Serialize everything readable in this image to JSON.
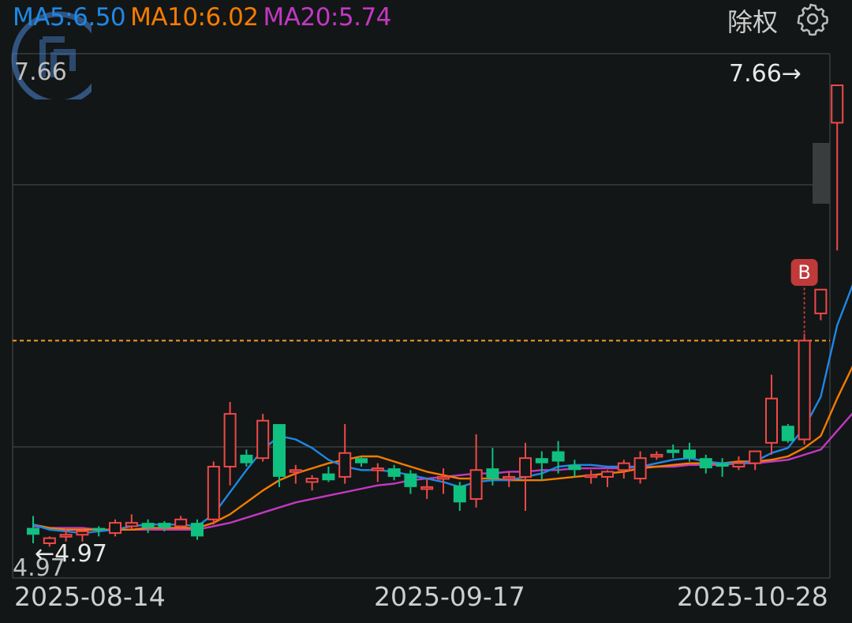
{
  "legend": {
    "ma5": {
      "label": "MA5:6.50",
      "color": "#1e88e5"
    },
    "ma10": {
      "label": "MA10:6.02",
      "color": "#f57c00"
    },
    "ma20": {
      "label": "MA20:5.74",
      "color": "#c238c2"
    }
  },
  "controls": {
    "adjust_label": "除权",
    "settings_icon": "gear-icon"
  },
  "axis": {
    "top_price": "7.66",
    "bottom_price": "4.97",
    "dates": [
      "2025-08-14",
      "2025-09-17",
      "2025-10-28"
    ]
  },
  "annotations": {
    "high_label": "7.66→",
    "low_label": "←4.97",
    "buy_marker": "B"
  },
  "chart_data": {
    "type": "candlestick",
    "ylim": [
      4.97,
      7.66
    ],
    "up_color": "#f04848",
    "down_color": "#10c080",
    "reference_line": 6.16,
    "candles": [
      {
        "o": 5.02,
        "h": 5.13,
        "l": 4.97,
        "c": 5.06,
        "dir": "down"
      },
      {
        "o": 4.97,
        "h": 5.01,
        "l": 4.95,
        "c": 5.0,
        "dir": "up"
      },
      {
        "o": 5.02,
        "h": 5.06,
        "l": 4.98,
        "c": 5.01,
        "dir": "up"
      },
      {
        "o": 5.02,
        "h": 5.05,
        "l": 4.98,
        "c": 5.04,
        "dir": "up"
      },
      {
        "o": 5.05,
        "h": 5.07,
        "l": 5.01,
        "c": 5.06,
        "dir": "down"
      },
      {
        "o": 5.03,
        "h": 5.11,
        "l": 5.01,
        "c": 5.09,
        "dir": "up"
      },
      {
        "o": 5.07,
        "h": 5.14,
        "l": 5.05,
        "c": 5.09,
        "dir": "up"
      },
      {
        "o": 5.06,
        "h": 5.11,
        "l": 5.03,
        "c": 5.09,
        "dir": "down"
      },
      {
        "o": 5.09,
        "h": 5.1,
        "l": 5.04,
        "c": 5.06,
        "dir": "down"
      },
      {
        "o": 5.07,
        "h": 5.13,
        "l": 5.05,
        "c": 5.11,
        "dir": "up"
      },
      {
        "o": 5.09,
        "h": 5.11,
        "l": 4.99,
        "c": 5.01,
        "dir": "down"
      },
      {
        "o": 5.11,
        "h": 5.45,
        "l": 5.08,
        "c": 5.42,
        "dir": "up"
      },
      {
        "o": 5.42,
        "h": 5.8,
        "l": 5.31,
        "c": 5.73,
        "dir": "up"
      },
      {
        "o": 5.49,
        "h": 5.52,
        "l": 5.42,
        "c": 5.44,
        "dir": "down"
      },
      {
        "o": 5.47,
        "h": 5.73,
        "l": 5.45,
        "c": 5.69,
        "dir": "up"
      },
      {
        "o": 5.67,
        "h": 5.67,
        "l": 5.3,
        "c": 5.36,
        "dir": "down"
      },
      {
        "o": 5.4,
        "h": 5.43,
        "l": 5.32,
        "c": 5.4,
        "dir": "up"
      },
      {
        "o": 5.35,
        "h": 5.37,
        "l": 5.28,
        "c": 5.33,
        "dir": "up"
      },
      {
        "o": 5.38,
        "h": 5.42,
        "l": 5.33,
        "c": 5.34,
        "dir": "down"
      },
      {
        "o": 5.36,
        "h": 5.67,
        "l": 5.32,
        "c": 5.5,
        "dir": "up"
      },
      {
        "o": 5.47,
        "h": 5.48,
        "l": 5.42,
        "c": 5.44,
        "dir": "down"
      },
      {
        "o": 5.4,
        "h": 5.44,
        "l": 5.33,
        "c": 5.41,
        "dir": "up"
      },
      {
        "o": 5.41,
        "h": 5.43,
        "l": 5.34,
        "c": 5.36,
        "dir": "down"
      },
      {
        "o": 5.38,
        "h": 5.4,
        "l": 5.26,
        "c": 5.3,
        "dir": "down"
      },
      {
        "o": 5.3,
        "h": 5.35,
        "l": 5.23,
        "c": 5.3,
        "dir": "up"
      },
      {
        "o": 5.35,
        "h": 5.41,
        "l": 5.26,
        "c": 5.36,
        "dir": "up"
      },
      {
        "o": 5.31,
        "h": 5.33,
        "l": 5.16,
        "c": 5.21,
        "dir": "down"
      },
      {
        "o": 5.23,
        "h": 5.61,
        "l": 5.18,
        "c": 5.4,
        "dir": "up"
      },
      {
        "o": 5.41,
        "h": 5.53,
        "l": 5.31,
        "c": 5.35,
        "dir": "down"
      },
      {
        "o": 5.35,
        "h": 5.39,
        "l": 5.3,
        "c": 5.36,
        "dir": "up"
      },
      {
        "o": 5.36,
        "h": 5.56,
        "l": 5.16,
        "c": 5.47,
        "dir": "up"
      },
      {
        "o": 5.47,
        "h": 5.51,
        "l": 5.34,
        "c": 5.44,
        "dir": "down"
      },
      {
        "o": 5.45,
        "h": 5.57,
        "l": 5.38,
        "c": 5.51,
        "dir": "down"
      },
      {
        "o": 5.43,
        "h": 5.46,
        "l": 5.36,
        "c": 5.4,
        "dir": "down"
      },
      {
        "o": 5.37,
        "h": 5.4,
        "l": 5.32,
        "c": 5.37,
        "dir": "up"
      },
      {
        "o": 5.36,
        "h": 5.4,
        "l": 5.3,
        "c": 5.39,
        "dir": "up"
      },
      {
        "o": 5.4,
        "h": 5.46,
        "l": 5.35,
        "c": 5.44,
        "dir": "up"
      },
      {
        "o": 5.35,
        "h": 5.51,
        "l": 5.32,
        "c": 5.47,
        "dir": "up"
      },
      {
        "o": 5.48,
        "h": 5.51,
        "l": 5.46,
        "c": 5.49,
        "dir": "up"
      },
      {
        "o": 5.5,
        "h": 5.55,
        "l": 5.47,
        "c": 5.52,
        "dir": "down"
      },
      {
        "o": 5.52,
        "h": 5.56,
        "l": 5.45,
        "c": 5.47,
        "dir": "down"
      },
      {
        "o": 5.47,
        "h": 5.49,
        "l": 5.38,
        "c": 5.41,
        "dir": "down"
      },
      {
        "o": 5.42,
        "h": 5.47,
        "l": 5.36,
        "c": 5.44,
        "dir": "down"
      },
      {
        "o": 5.44,
        "h": 5.48,
        "l": 5.4,
        "c": 5.42,
        "dir": "up"
      },
      {
        "o": 5.44,
        "h": 5.51,
        "l": 5.4,
        "c": 5.51,
        "dir": "up"
      },
      {
        "o": 5.56,
        "h": 5.96,
        "l": 5.49,
        "c": 5.82,
        "dir": "up"
      },
      {
        "o": 5.66,
        "h": 5.67,
        "l": 5.56,
        "c": 5.57,
        "dir": "down"
      },
      {
        "o": 5.58,
        "h": 6.2,
        "l": 5.55,
        "c": 6.16,
        "dir": "up"
      },
      {
        "o": 6.32,
        "h": 6.46,
        "l": 6.28,
        "c": 6.46,
        "dir": "up"
      },
      {
        "o": 7.44,
        "h": 7.66,
        "l": 6.69,
        "c": 7.66,
        "dir": "up"
      }
    ],
    "ma5": [
      5.08,
      5.05,
      5.04,
      5.03,
      5.04,
      5.05,
      5.07,
      5.08,
      5.08,
      5.08,
      5.07,
      5.14,
      5.27,
      5.4,
      5.52,
      5.6,
      5.58,
      5.53,
      5.46,
      5.42,
      5.4,
      5.4,
      5.39,
      5.37,
      5.35,
      5.33,
      5.3,
      5.33,
      5.34,
      5.34,
      5.36,
      5.38,
      5.42,
      5.43,
      5.43,
      5.42,
      5.42,
      5.42,
      5.44,
      5.46,
      5.47,
      5.45,
      5.44,
      5.44,
      5.45,
      5.5,
      5.53,
      5.65,
      5.83,
      6.25,
      6.5
    ],
    "ma10": [
      5.08,
      5.06,
      5.05,
      5.05,
      5.05,
      5.05,
      5.05,
      5.06,
      5.06,
      5.06,
      5.06,
      5.09,
      5.14,
      5.21,
      5.28,
      5.34,
      5.38,
      5.41,
      5.44,
      5.46,
      5.48,
      5.48,
      5.45,
      5.42,
      5.39,
      5.37,
      5.35,
      5.35,
      5.35,
      5.34,
      5.34,
      5.34,
      5.35,
      5.36,
      5.37,
      5.38,
      5.39,
      5.41,
      5.42,
      5.43,
      5.44,
      5.44,
      5.44,
      5.45,
      5.45,
      5.46,
      5.48,
      5.53,
      5.6,
      5.82,
      6.02
    ],
    "ma20": [
      5.07,
      5.06,
      5.06,
      5.06,
      5.05,
      5.05,
      5.05,
      5.05,
      5.05,
      5.05,
      5.05,
      5.07,
      5.09,
      5.12,
      5.15,
      5.18,
      5.21,
      5.23,
      5.25,
      5.27,
      5.29,
      5.31,
      5.32,
      5.34,
      5.35,
      5.36,
      5.37,
      5.38,
      5.38,
      5.39,
      5.39,
      5.4,
      5.4,
      5.41,
      5.41,
      5.41,
      5.41,
      5.42,
      5.42,
      5.42,
      5.43,
      5.43,
      5.43,
      5.44,
      5.44,
      5.45,
      5.46,
      5.49,
      5.52,
      5.63,
      5.74
    ]
  }
}
